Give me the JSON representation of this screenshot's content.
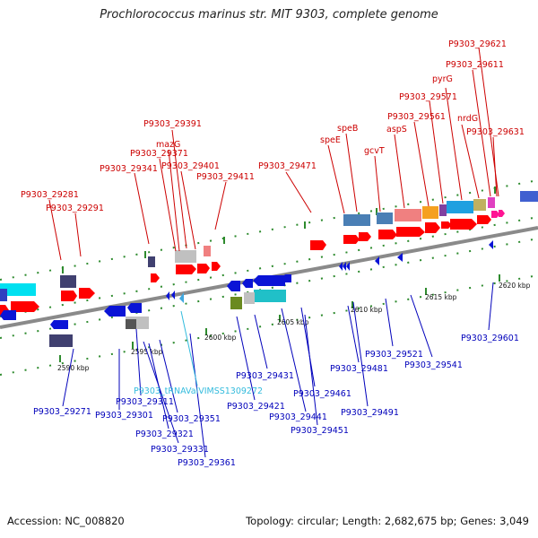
{
  "title": "Prochlorococcus marinus str. MIT 9303, complete genome",
  "footer": {
    "accession": "Accession: NC_008820",
    "topology": "Topology: circular; Length: 2,682,675 bp; Genes: 3,049"
  },
  "colors": {
    "forward_label": "#cc0000",
    "reverse_label": "#0000bb",
    "rna_label": "#33bbdd",
    "backbone": "#8a8a8a"
  },
  "scale_labels": [
    "2590 kbp",
    "2595 kbp",
    "2600 kbp",
    "2605 kbp",
    "2610 kbp",
    "2615 kbp",
    "2620 kbp"
  ],
  "forward_gene_labels": [
    "P9303_29621",
    "P9303_29611",
    "pyrG",
    "P9303_29571",
    "nrdG",
    "P9303_29561",
    "P9303_29631",
    "speB",
    "aspS",
    "P9303_29391",
    "speE",
    "gcvT",
    "mazG",
    "P9303_29371",
    "P9303_29401",
    "P9303_29471",
    "P9303_29341",
    "P9303_29411",
    "P9303_29281",
    "P9303_29291"
  ],
  "reverse_gene_labels": [
    "P9303_29601",
    "P9303_29521",
    "P9303_29541",
    "P9303_29481",
    "P9303_29431",
    "P9303_29461",
    "P9303_29491",
    "P9303_29311",
    "P9303_29421",
    "P9303_29271",
    "P9303_29301",
    "P9303_29441",
    "P9303_29351",
    "P9303_29451",
    "P9303_29321",
    "P9303_29331",
    "P9303_29361"
  ],
  "rna_gene_labels": [
    "P9303_tRNAValVIMSS1309272"
  ]
}
